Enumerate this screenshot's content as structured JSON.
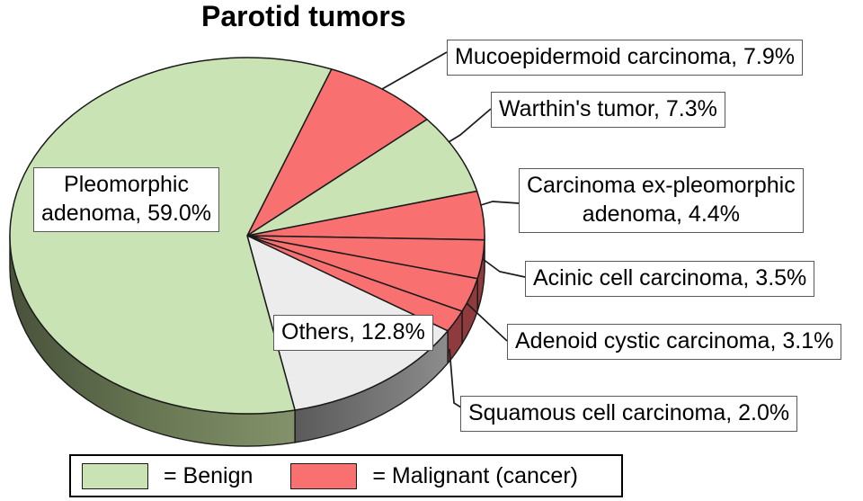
{
  "title": "Parotid tumors",
  "chart_data": {
    "type": "pie",
    "title": "Parotid tumors",
    "style": "3d-pie",
    "start_angle_deg": 20.8,
    "slices": [
      {
        "name": "Mucoepidermoid carcinoma",
        "value": 7.9,
        "category": "malignant",
        "label": "Mucoepidermoid carcinoma, 7.9%"
      },
      {
        "name": "Warthin's tumor",
        "value": 7.3,
        "category": "benign",
        "label": "Warthin's tumor, 7.3%"
      },
      {
        "name": "Carcinoma ex-pleomorphic adenoma",
        "value": 4.4,
        "category": "malignant",
        "label": "Carcinoma ex-pleomorphic\nadenoma, 4.4%"
      },
      {
        "name": "Acinic cell carcinoma",
        "value": 3.5,
        "category": "malignant",
        "label": "Acinic cell carcinoma, 3.5%"
      },
      {
        "name": "Adenoid cystic carcinoma",
        "value": 3.1,
        "category": "malignant",
        "label": "Adenoid cystic carcinoma, 3.1%"
      },
      {
        "name": "Squamous cell carcinoma",
        "value": 2.0,
        "category": "malignant",
        "label": "Squamous cell carcinoma, 2.0%"
      },
      {
        "name": "Others",
        "value": 12.8,
        "category": "other",
        "label": "Others, 12.8%"
      },
      {
        "name": "Pleomorphic adenoma",
        "value": 59.0,
        "category": "benign",
        "label": "Pleomorphic\nadenoma, 59.0%"
      }
    ],
    "colors": {
      "benign": {
        "top": "#c9e3b4",
        "side": "#66754f"
      },
      "malignant": {
        "top": "#f87070",
        "side": "#8f3a3d"
      },
      "other": {
        "top": "#ececec",
        "side": "#6e6e6e"
      }
    },
    "legend": [
      {
        "category": "benign",
        "label": "= Benign"
      },
      {
        "category": "malignant",
        "label": "= Malignant (cancer)"
      }
    ]
  }
}
